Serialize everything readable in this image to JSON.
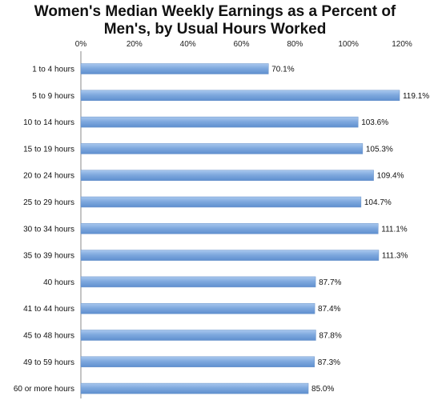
{
  "chart_data": {
    "type": "bar",
    "orientation": "horizontal",
    "title_line1": "Women's Median Weekly Earnings as a Percent of",
    "title_line2": "Men's, by Usual Hours Worked",
    "xlim": [
      0,
      120
    ],
    "x_ticks": [
      "0%",
      "20%",
      "40%",
      "60%",
      "80%",
      "100%",
      "120%"
    ],
    "x_axis_position": "top",
    "grid": false,
    "categories": [
      "1 to 4 hours",
      "5 to 9 hours",
      "10 to 14 hours",
      "15 to 19 hours",
      "20 to 24 hours",
      "25 to 29 hours",
      "30 to 34 hours",
      "35 to 39 hours",
      "40 hours",
      "41 to 44 hours",
      "45 to 48 hours",
      "49 to 59 hours",
      "60 or more hours"
    ],
    "values": [
      70.1,
      119.1,
      103.6,
      105.3,
      109.4,
      104.7,
      111.1,
      111.3,
      87.7,
      87.4,
      87.8,
      87.3,
      85.0
    ],
    "data_labels": [
      "70.1%",
      "119.1%",
      "103.6%",
      "105.3%",
      "109.4%",
      "104.7%",
      "111.1%",
      "111.3%",
      "87.7%",
      "87.4%",
      "87.8%",
      "87.3%",
      "85.0%"
    ],
    "bar_color": "#7fa9de"
  }
}
